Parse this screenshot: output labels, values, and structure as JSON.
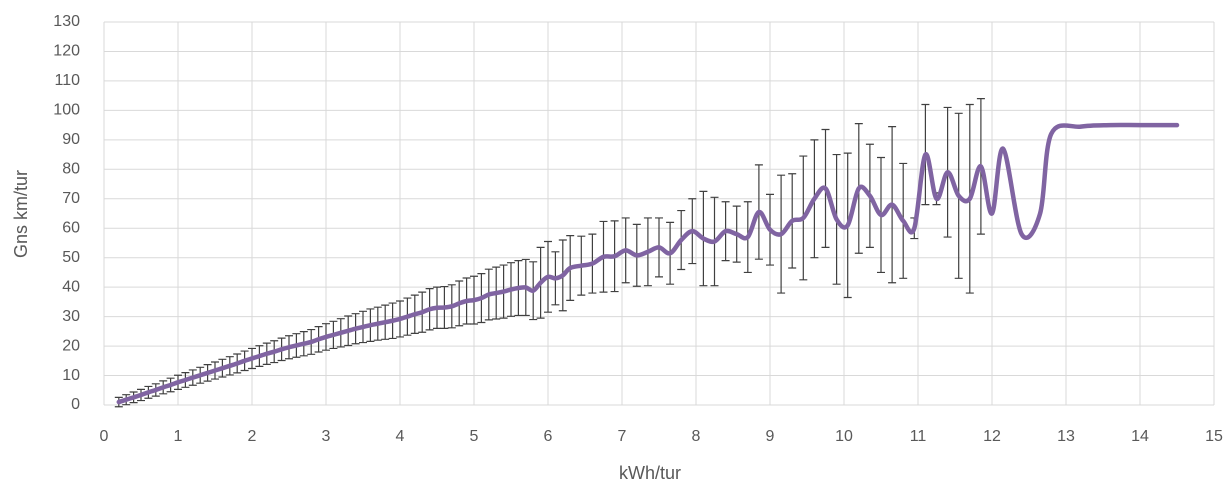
{
  "chart_data": {
    "type": "line",
    "x_label": "kWh/tur",
    "y_label": "Gns km/tur",
    "x": [
      0.2,
      0.3,
      0.4,
      0.5,
      0.6,
      0.7,
      0.8,
      0.9,
      1.0,
      1.1,
      1.2,
      1.3,
      1.4,
      1.5,
      1.6,
      1.7,
      1.8,
      1.9,
      2.0,
      2.1,
      2.2,
      2.3,
      2.4,
      2.5,
      2.6,
      2.7,
      2.8,
      2.9,
      3.0,
      3.1,
      3.2,
      3.3,
      3.4,
      3.5,
      3.6,
      3.7,
      3.8,
      3.9,
      4.0,
      4.1,
      4.2,
      4.3,
      4.4,
      4.5,
      4.6,
      4.7,
      4.8,
      4.9,
      5.0,
      5.1,
      5.2,
      5.3,
      5.4,
      5.5,
      5.6,
      5.7,
      5.8,
      5.9,
      6.0,
      6.1,
      6.2,
      6.3,
      6.45,
      6.6,
      6.75,
      6.9,
      7.05,
      7.2,
      7.35,
      7.5,
      7.65,
      7.8,
      7.95,
      8.1,
      8.25,
      8.4,
      8.55,
      8.7,
      8.85,
      9.0,
      9.15,
      9.3,
      9.45,
      9.6,
      9.75,
      9.9,
      10.05,
      10.2,
      10.35,
      10.5,
      10.65,
      10.8,
      10.95,
      11.1,
      11.25,
      11.4,
      11.55,
      11.7,
      11.85,
      12.0,
      12.15,
      12.4,
      12.65,
      12.8,
      13.2,
      13.6,
      14.0,
      14.5
    ],
    "values": [
      1,
      1.8,
      2.6,
      3.4,
      4.3,
      5.1,
      6,
      6.8,
      7.7,
      8.5,
      9.3,
      10.1,
      10.9,
      11.7,
      12.5,
      13.3,
      14.1,
      15,
      15.8,
      16.6,
      17.4,
      18.1,
      18.9,
      19.6,
      20.2,
      20.8,
      21.4,
      22.3,
      23.1,
      23.8,
      24.5,
      25.2,
      25.9,
      26.5,
      27.1,
      27.6,
      28.1,
      28.6,
      29.2,
      30,
      30.8,
      31.5,
      32.5,
      33,
      33.1,
      33.5,
      34.5,
      35.3,
      35.6,
      36.3,
      37.5,
      38,
      38.5,
      39.2,
      39.7,
      39.9,
      38.8,
      41.5,
      43.5,
      43,
      44,
      46.5,
      47.3,
      48,
      50.3,
      50.5,
      52.5,
      50.8,
      52,
      53.5,
      51.5,
      56,
      59,
      56.5,
      55.5,
      59,
      58,
      57,
      65.5,
      59.5,
      58,
      62.5,
      63.5,
      70,
      73.5,
      63,
      61,
      73.5,
      71,
      64.5,
      68,
      62.5,
      60,
      85,
      70,
      79,
      71,
      70,
      81,
      65,
      87,
      58,
      65,
      92,
      94.5,
      95,
      95,
      95
    ],
    "errors": [
      1.6,
      1.7,
      1.8,
      1.9,
      2,
      2.1,
      2.2,
      2.3,
      2.4,
      2.5,
      2.6,
      2.7,
      2.8,
      2.9,
      3,
      3.1,
      3.2,
      3.3,
      3.4,
      3.5,
      3.6,
      3.7,
      3.8,
      3.9,
      4,
      4.1,
      4.2,
      4.3,
      4.5,
      4.6,
      4.8,
      5,
      5.1,
      5.3,
      5.5,
      5.6,
      5.8,
      6,
      6.1,
      6.3,
      6.5,
      6.8,
      7,
      7,
      7.1,
      7.3,
      7.6,
      7.8,
      8.1,
      8.3,
      8.6,
      8.8,
      9,
      9.1,
      9.3,
      9.5,
      9.8,
      12,
      12,
      9,
      12,
      11,
      10,
      10,
      12,
      12,
      11,
      10.5,
      11.5,
      10,
      10.5,
      10,
      11,
      16,
      15,
      10,
      9.5,
      12,
      16,
      12,
      20,
      16,
      21,
      20,
      20,
      22,
      24.5,
      22,
      17.5,
      19.5,
      26.5,
      19.5,
      3.5,
      17,
      2,
      22,
      28,
      32,
      23,
      null,
      null,
      null,
      null,
      null,
      null,
      null,
      null,
      null
    ],
    "color": "#8064a2",
    "error_color": "#404040",
    "xlim": [
      0,
      15
    ],
    "xticks": [
      0,
      1,
      2,
      3,
      4,
      5,
      6,
      7,
      8,
      9,
      10,
      11,
      12,
      13,
      14,
      15
    ],
    "ylim": [
      0,
      130
    ],
    "yticks": [
      0,
      10,
      20,
      30,
      40,
      50,
      60,
      70,
      80,
      90,
      100,
      110,
      120,
      130
    ],
    "grid": true
  }
}
